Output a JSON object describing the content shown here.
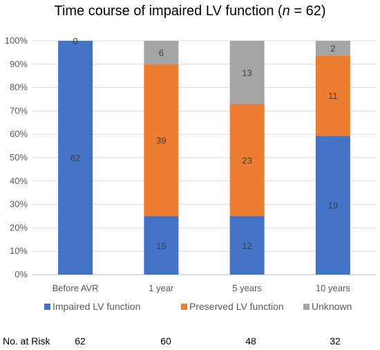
{
  "chart_data": {
    "type": "bar",
    "stacked": true,
    "normalized": true,
    "title_prefix": "Time course of impaired LV function (",
    "title_italic": "n",
    "title_suffix": " = 62)",
    "categories": [
      "Before AVR",
      "1 year",
      "5 years",
      "10 years"
    ],
    "series": [
      {
        "name": "Impaired LV function",
        "color": "#4472C4",
        "values": [
          62,
          15,
          12,
          19
        ]
      },
      {
        "name": "Preserved  LV function",
        "color": "#ED7D31",
        "values": [
          0,
          39,
          23,
          11
        ]
      },
      {
        "name": "Unknown",
        "color": "#A5A5A5",
        "values": [
          0,
          6,
          13,
          2
        ]
      }
    ],
    "top_labels": {
      "0": "0"
    },
    "ylim": [
      0,
      100
    ],
    "yticks": [
      "0%",
      "10%",
      "20%",
      "30%",
      "40%",
      "50%",
      "60%",
      "70%",
      "80%",
      "90%",
      "100%"
    ],
    "grid": true,
    "legend_position": "bottom"
  },
  "risk_table": {
    "label": "No. at Risk",
    "values": [
      "62",
      "60",
      "48",
      "32"
    ]
  }
}
